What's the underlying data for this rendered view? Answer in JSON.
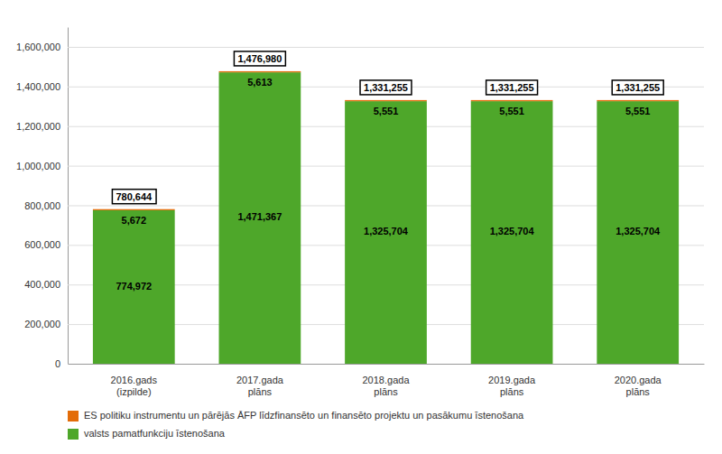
{
  "chart_data": {
    "type": "bar",
    "stacked": true,
    "categories": [
      "2016.gads\n(izpilde)",
      "2017.gada\nplāns",
      "2018.gada\nplāns",
      "2019.gada\nplāns",
      "2020.gada\nplāns"
    ],
    "series": [
      {
        "name": "valsts pamatfunkciju īstenošana",
        "color": "#4EA72A",
        "values": [
          774972,
          1471367,
          1325704,
          1325704,
          1325704
        ],
        "value_labels": [
          "774,972",
          "1,471,367",
          "1,325,704",
          "1,325,704",
          "1,325,704"
        ]
      },
      {
        "name": "ES politiku instrumentu un pārējās ĀFP līdzfinansēto un finansēto projektu un pasākumu īstenošana",
        "color": "#E36C09",
        "values": [
          5672,
          5613,
          5551,
          5551,
          5551
        ],
        "value_labels": [
          "5,672",
          "5,613",
          "5,551",
          "5,551",
          "5,551"
        ]
      }
    ],
    "totals": [
      780644,
      1476980,
      1331255,
      1331255,
      1331255
    ],
    "total_labels": [
      "780,644",
      "1,476,980",
      "1,331,255",
      "1,331,255",
      "1,331,255"
    ],
    "ylim": [
      0,
      1700000
    ],
    "yticks": [
      0,
      {
        "value": 200000,
        "label": "200,000"
      },
      {
        "value": 400000,
        "label": "400,000"
      },
      {
        "value": 600000,
        "label": "600,000"
      },
      {
        "value": 800000,
        "label": "800,000"
      },
      {
        "value": 1000000,
        "label": "1,000,000"
      },
      {
        "value": 1200000,
        "label": "1,200,000"
      },
      {
        "value": 1400000,
        "label": "1,400,000"
      },
      {
        "value": 1600000,
        "label": "1,600,000"
      }
    ],
    "grid": true,
    "data_labels": true,
    "legend": "lower left"
  }
}
